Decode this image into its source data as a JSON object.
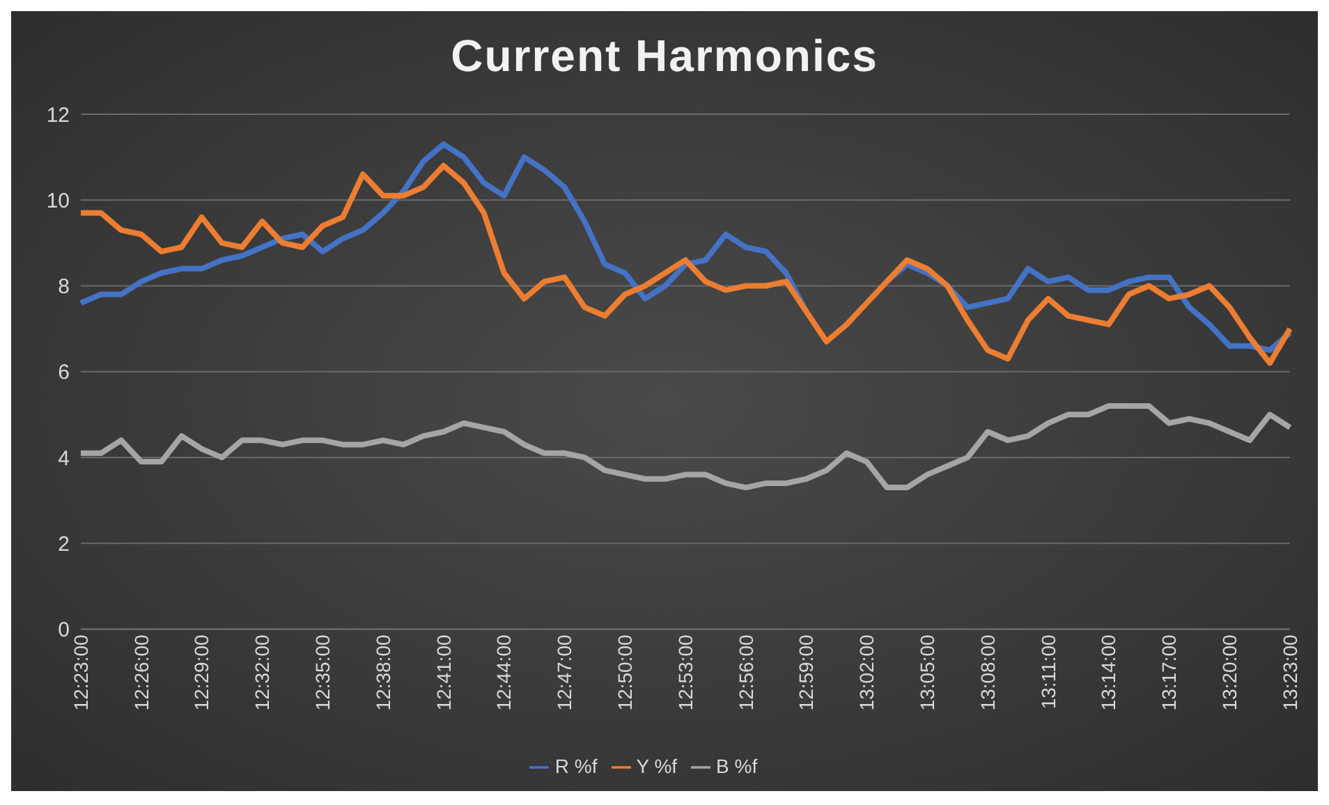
{
  "chart_data": {
    "type": "line",
    "title": "Current Harmonics",
    "categories": [
      "12:23:00",
      null,
      null,
      "12:26:00",
      null,
      null,
      "12:29:00",
      null,
      null,
      "12:32:00",
      null,
      null,
      "12:35:00",
      null,
      null,
      "12:38:00",
      null,
      null,
      "12:41:00",
      null,
      null,
      "12:44:00",
      null,
      null,
      "12:47:00",
      null,
      null,
      "12:50:00",
      null,
      null,
      "12:53:00",
      null,
      null,
      "12:56:00",
      null,
      null,
      "12:59:00",
      null,
      null,
      "13:02:00",
      null,
      null,
      "13:05:00",
      null,
      null,
      "13:08:00",
      null,
      null,
      "13:11:00",
      null,
      null,
      "13:14:00",
      null,
      null,
      "13:17:00",
      null,
      null,
      "13:20:00",
      null,
      null,
      "13:23:00"
    ],
    "series": [
      {
        "name": "R %f",
        "color": "#4472c4",
        "values": [
          7.6,
          7.8,
          7.8,
          8.1,
          8.3,
          8.4,
          8.4,
          8.6,
          8.7,
          8.9,
          9.1,
          9.2,
          8.8,
          9.1,
          9.3,
          9.7,
          10.2,
          10.9,
          11.3,
          11.0,
          10.4,
          10.1,
          11.0,
          10.7,
          10.3,
          9.5,
          8.5,
          8.3,
          7.7,
          8.0,
          8.5,
          8.6,
          9.2,
          8.9,
          8.8,
          8.3,
          7.4,
          null,
          null,
          null,
          8.1,
          8.5,
          8.3,
          8.0,
          7.5,
          7.6,
          7.7,
          8.4,
          8.1,
          8.2,
          7.9,
          7.9,
          8.1,
          8.2,
          8.2,
          7.5,
          7.1,
          6.6,
          6.6,
          6.5,
          6.9
        ]
      },
      {
        "name": "Y %f",
        "color": "#ed7d31",
        "values": [
          9.7,
          9.7,
          9.3,
          9.2,
          8.8,
          8.9,
          9.6,
          9.0,
          8.9,
          9.5,
          9.0,
          8.9,
          9.4,
          9.6,
          10.6,
          10.1,
          10.1,
          10.3,
          10.8,
          10.4,
          9.7,
          8.3,
          7.7,
          8.1,
          8.2,
          7.5,
          7.3,
          7.8,
          8.0,
          8.3,
          8.6,
          8.1,
          7.9,
          8.0,
          8.0,
          8.1,
          7.4,
          6.7,
          7.1,
          7.6,
          8.1,
          8.6,
          8.4,
          8.0,
          7.2,
          6.5,
          6.3,
          7.2,
          7.7,
          7.3,
          7.2,
          7.1,
          7.8,
          8.0,
          7.7,
          7.8,
          8.0,
          7.5,
          6.8,
          6.2,
          7.0
        ]
      },
      {
        "name": "B %f",
        "color": "#a5a5a5",
        "values": [
          4.1,
          4.1,
          4.4,
          3.9,
          3.9,
          4.5,
          4.2,
          4.0,
          4.4,
          4.4,
          4.3,
          4.4,
          4.4,
          4.3,
          4.3,
          4.4,
          4.3,
          4.5,
          4.6,
          4.8,
          4.7,
          4.6,
          4.3,
          4.1,
          4.1,
          4.0,
          3.7,
          3.6,
          3.5,
          3.5,
          3.6,
          3.6,
          3.4,
          3.3,
          3.4,
          3.4,
          3.5,
          3.7,
          4.1,
          3.9,
          3.3,
          3.3,
          3.6,
          3.8,
          4.0,
          4.6,
          4.4,
          4.5,
          4.8,
          5.0,
          5.0,
          5.2,
          5.2,
          5.2,
          4.8,
          4.9,
          4.8,
          4.6,
          4.4,
          5.0,
          4.7
        ]
      }
    ],
    "ylim": [
      0,
      12
    ],
    "yticks": [
      0,
      2,
      4,
      6,
      8,
      10,
      12
    ],
    "grid": "y",
    "legend": "bottom",
    "marker": "none",
    "line_style": "solid"
  }
}
